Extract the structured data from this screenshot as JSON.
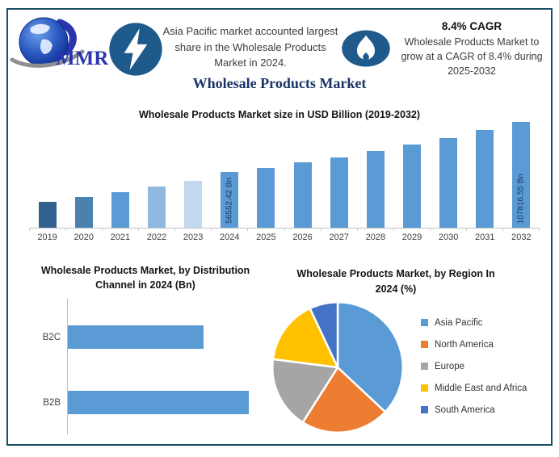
{
  "brand": {
    "logo_text": "MMR"
  },
  "header": {
    "highlight_text": "Asia Pacific market accounted largest share in the Wholesale Products Market in 2024.",
    "cagr_heading": "8.4% CAGR",
    "cagr_text": "Wholesale Products Market to grow at a CAGR of 8.4% during 2025-2032"
  },
  "main_title": "Wholesale Products Market",
  "icons": {
    "bolt": "lightning-bolt",
    "flame": "flame",
    "badge_color": "#1E5A8C"
  },
  "chart_data": [
    {
      "type": "bar",
      "title": "Wholesale Products Market size in USD Billion (2019-2032)",
      "ylabel": "USD Billion",
      "categories": [
        "2019",
        "2020",
        "2021",
        "2022",
        "2023",
        "2024",
        "2025",
        "2026",
        "2027",
        "2028",
        "2029",
        "2030",
        "2031",
        "2032"
      ],
      "values": [
        26500,
        31000,
        36000,
        42000,
        48000,
        56552.42,
        61302.8,
        66452.2,
        72034.2,
        78085.1,
        84644.2,
        91754.3,
        99461.6,
        107816.55
      ],
      "value_labels": {
        "2024": "56552.42 Bn",
        "2032": "107816.55 Bn"
      },
      "bar_colors": [
        "#31618F",
        "#4A81AF",
        "#5B9BD5",
        "#8FB9DE",
        "#C2D8EE",
        "#5B9BD5",
        "#5B9BD5",
        "#5B9BD5",
        "#5B9BD5",
        "#5B9BD5",
        "#5B9BD5",
        "#5B9BD5",
        "#5B9BD5",
        "#5B9BD5"
      ],
      "ylim": [
        0,
        110000
      ],
      "grid": false,
      "note": "Only 2024 and 2032 carry printed labels; 2019-2023 estimated from bar heights, 2025-2031 follow the stated 8.4% CAGR."
    },
    {
      "type": "bar",
      "orientation": "horizontal",
      "title": "Wholesale Products Market, by Distribution Channel in 2024 (Bn)",
      "categories": [
        "B2C",
        "B2B"
      ],
      "values": [
        75,
        100
      ],
      "bar_color": "#5B9BD5",
      "note": "Axis unlabeled; values are relative bar lengths (% of longest bar)."
    },
    {
      "type": "pie",
      "title": "Wholesale Products Market, by Region In 2024 (%)",
      "labels": [
        "Asia Pacific",
        "North America",
        "Europe",
        "Middle East and Africa",
        "South America"
      ],
      "values": [
        37,
        22,
        18,
        16,
        7
      ],
      "colors": [
        "#5B9BD5",
        "#ED7D31",
        "#A5A5A5",
        "#FFC000",
        "#4472C4"
      ],
      "legend_position": "right",
      "start_angle_deg": 0,
      "direction": "clockwise",
      "note": "Slice shares estimated from angles; no data labels printed."
    }
  ]
}
